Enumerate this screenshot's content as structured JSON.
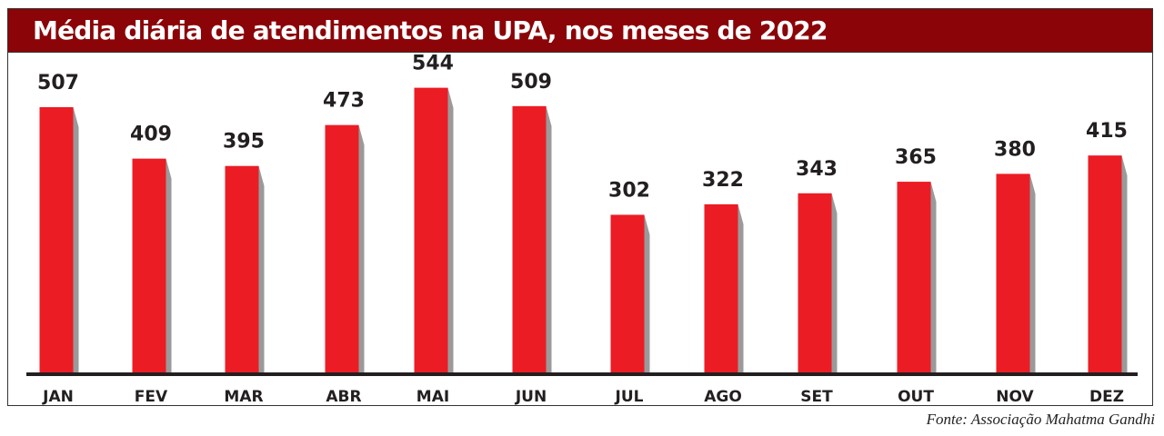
{
  "chart_data": {
    "type": "bar",
    "title": "Média diária de atendimentos na UPA, nos meses de 2022",
    "categories": [
      "JAN",
      "FEV",
      "MAR",
      "ABR",
      "MAI",
      "JUN",
      "JUL",
      "AGO",
      "SET",
      "OUT",
      "NOV",
      "DEZ"
    ],
    "values": [
      507,
      409,
      395,
      473,
      544,
      509,
      302,
      322,
      343,
      365,
      380,
      415
    ],
    "data_labels": [
      "507",
      "409",
      "395",
      "473",
      "544",
      "509",
      "302",
      "322",
      "343",
      "365",
      "380",
      "415"
    ],
    "xlabel": "",
    "ylabel": "",
    "ylim": [
      0,
      560
    ],
    "grid": false,
    "legend": "none",
    "source": "Fonte: Associação Mahatma Gandhi",
    "colors": {
      "bar": "#ec1c24",
      "shadow": "#9a9a9a",
      "title_bg": "#8b0408",
      "axis": "#231f20",
      "text": "#231f20"
    }
  }
}
